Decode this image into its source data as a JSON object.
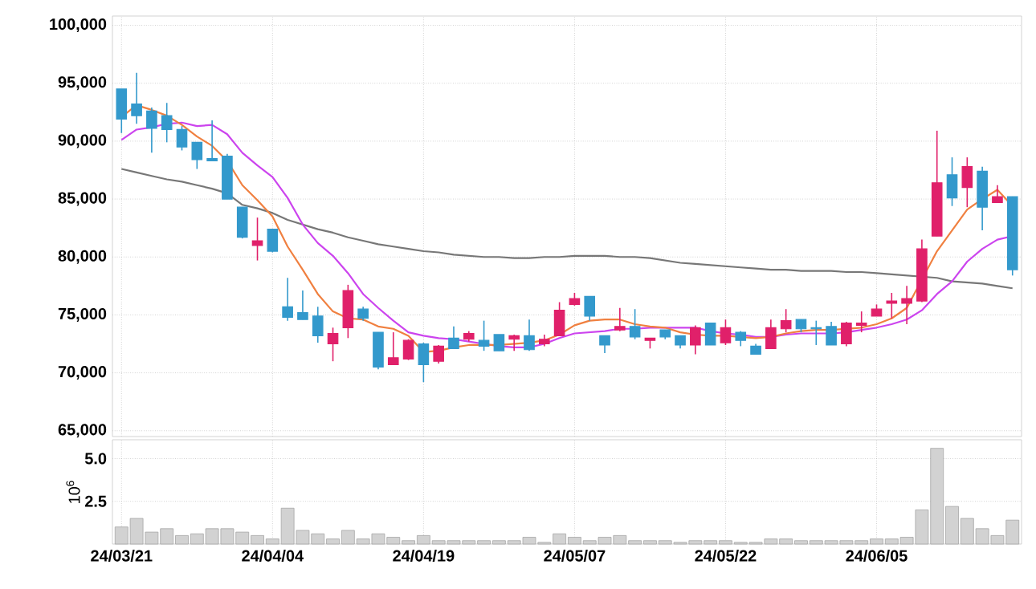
{
  "chart_data": [
    {
      "type": "candlestick",
      "categories": [
        null,
        null,
        null,
        null,
        null,
        null,
        null,
        null,
        null,
        null,
        null,
        null,
        null,
        null,
        null,
        null,
        null,
        null,
        null,
        null,
        null,
        null,
        null,
        null,
        null,
        null,
        null,
        null,
        null,
        null,
        null,
        null,
        null,
        null,
        null,
        null,
        null,
        null,
        null,
        null,
        null,
        null,
        null,
        null,
        null,
        null,
        null,
        null,
        null,
        null,
        null,
        null,
        null,
        null,
        null,
        null,
        null,
        null,
        null,
        null
      ],
      "ohlc": [
        [
          94500,
          94500,
          90700,
          91900
        ],
        [
          93200,
          95900,
          91500,
          92200
        ],
        [
          92600,
          92900,
          89000,
          91100
        ],
        [
          92200,
          93300,
          89900,
          91000
        ],
        [
          91000,
          91300,
          89200,
          89500
        ],
        [
          89900,
          89900,
          87600,
          88400
        ],
        [
          88500,
          91800,
          88300,
          88300
        ],
        [
          88700,
          88900,
          85000,
          85000
        ],
        [
          84300,
          84300,
          81600,
          81700
        ],
        [
          81000,
          83400,
          79700,
          81400
        ],
        [
          82400,
          82400,
          80400,
          80500
        ],
        [
          75700,
          78200,
          74500,
          74800
        ],
        [
          75200,
          77100,
          74600,
          74600
        ],
        [
          74900,
          75700,
          72600,
          73200
        ],
        [
          72500,
          73900,
          71000,
          73400
        ],
        [
          73900,
          77600,
          73000,
          77100
        ],
        [
          75500,
          75700,
          74500,
          74700
        ],
        [
          73500,
          73500,
          70300,
          70500
        ],
        [
          70700,
          73500,
          70700,
          71300
        ],
        [
          71200,
          72900,
          71100,
          72800
        ],
        [
          72500,
          72600,
          69200,
          70700
        ],
        [
          71000,
          72400,
          70800,
          72300
        ],
        [
          73000,
          74000,
          72100,
          72100
        ],
        [
          72900,
          73600,
          72700,
          73400
        ],
        [
          72800,
          74500,
          71900,
          72300
        ],
        [
          73300,
          73300,
          71900,
          71900
        ],
        [
          72900,
          73300,
          71900,
          73200
        ],
        [
          73200,
          74600,
          71900,
          72000
        ],
        [
          72500,
          73300,
          72300,
          72900
        ],
        [
          73200,
          76100,
          73200,
          75400
        ],
        [
          75900,
          76900,
          75800,
          76400
        ],
        [
          76600,
          76600,
          74500,
          74900
        ],
        [
          73200,
          73200,
          71700,
          72400
        ],
        [
          73700,
          75600,
          73600,
          74000
        ],
        [
          74000,
          75500,
          72900,
          73100
        ],
        [
          72800,
          73000,
          72100,
          73000
        ],
        [
          73700,
          73700,
          72900,
          73100
        ],
        [
          73200,
          73200,
          72100,
          72400
        ],
        [
          72400,
          74100,
          71600,
          73900
        ],
        [
          74300,
          74300,
          72400,
          72400
        ],
        [
          72600,
          74600,
          72400,
          73900
        ],
        [
          73500,
          73600,
          72300,
          72800
        ],
        [
          72300,
          72500,
          71600,
          71600
        ],
        [
          72100,
          74600,
          72100,
          73900
        ],
        [
          73800,
          75500,
          73500,
          74500
        ],
        [
          74600,
          74600,
          73500,
          73800
        ],
        [
          73900,
          74500,
          72400,
          73800
        ],
        [
          74000,
          74400,
          72400,
          72400
        ],
        [
          72500,
          74400,
          72300,
          74300
        ],
        [
          74100,
          75300,
          73500,
          74300
        ],
        [
          74900,
          75900,
          74900,
          75500
        ],
        [
          76000,
          76900,
          74700,
          76200
        ],
        [
          76000,
          77500,
          74200,
          76400
        ],
        [
          76200,
          81500,
          76100,
          80700
        ],
        [
          81800,
          90900,
          81800,
          86400
        ],
        [
          87100,
          88600,
          84400,
          85100
        ],
        [
          86000,
          88600,
          84300,
          87800
        ],
        [
          87400,
          87800,
          82300,
          84300
        ],
        [
          84700,
          86200,
          84700,
          85200
        ],
        [
          85200,
          85200,
          78400,
          78900
        ]
      ],
      "colors": [
        "#3399cc",
        "#3399cc",
        "#3399cc",
        "#3399cc",
        "#3399cc",
        "#3399cc",
        "#3399cc",
        "#3399cc",
        "#3399cc",
        "#e0206a",
        "#3399cc",
        "#3399cc",
        "#3399cc",
        "#3399cc",
        "#e0206a",
        "#e0206a",
        "#3399cc",
        "#3399cc",
        "#e0206a",
        "#e0206a",
        "#3399cc",
        "#e0206a",
        "#3399cc",
        "#e0206a",
        "#3399cc",
        "#3399cc",
        "#e0206a",
        "#3399cc",
        "#e0206a",
        "#e0206a",
        "#e0206a",
        "#3399cc",
        "#3399cc",
        "#e0206a",
        "#3399cc",
        "#e0206a",
        "#3399cc",
        "#3399cc",
        "#e0206a",
        "#3399cc",
        "#e0206a",
        "#3399cc",
        "#3399cc",
        "#e0206a",
        "#e0206a",
        "#3399cc",
        "#3399cc",
        "#3399cc",
        "#e0206a",
        "#e0206a",
        "#e0206a",
        "#e0206a",
        "#e0206a",
        "#e0206a",
        "#e0206a",
        "#3399cc",
        "#e0206a",
        "#3399cc",
        "#e0206a",
        "#3399cc"
      ],
      "series": [
        {
          "type": "line",
          "color": "#777777",
          "values": [
            87600,
            87300,
            87000,
            86700,
            86500,
            86200,
            85900,
            85500,
            84500,
            84200,
            83800,
            83200,
            82800,
            82400,
            82100,
            81700,
            81400,
            81100,
            80900,
            80700,
            80500,
            80400,
            80200,
            80100,
            80000,
            80000,
            79900,
            79900,
            80000,
            80000,
            80100,
            80100,
            80100,
            80000,
            80000,
            79900,
            79700,
            79500,
            79400,
            79300,
            79200,
            79100,
            79000,
            78900,
            78900,
            78800,
            78800,
            78800,
            78700,
            78700,
            78600,
            78500,
            78400,
            78300,
            78200,
            77900,
            77800,
            77700,
            77500,
            77300
          ]
        },
        {
          "type": "line",
          "color": "#cc44ee",
          "values": [
            90100,
            91000,
            91200,
            91500,
            91600,
            91300,
            91400,
            90600,
            89000,
            87900,
            86900,
            85100,
            82800,
            81200,
            80100,
            78600,
            76800,
            75600,
            74500,
            73500,
            73200,
            73000,
            72900,
            72700,
            72500,
            72300,
            72200,
            72200,
            72500,
            73000,
            73400,
            73500,
            73600,
            73800,
            73800,
            73900,
            73900,
            73900,
            73900,
            73600,
            73400,
            73300,
            73100,
            73100,
            73300,
            73400,
            73400,
            73400,
            73500,
            73700,
            73900,
            74200,
            74600,
            75400,
            76800,
            77900,
            79600,
            80700,
            81500,
            81800
          ]
        },
        {
          "type": "line",
          "color": "#f08040",
          "values": [
            92100,
            93100,
            92700,
            92200,
            91400,
            90400,
            89600,
            88300,
            86200,
            84900,
            83500,
            80900,
            78900,
            76800,
            75300,
            74700,
            74600,
            74000,
            73800,
            73200,
            71800,
            71900,
            72200,
            72400,
            72400,
            72400,
            72500,
            72600,
            72800,
            73300,
            74100,
            74500,
            74600,
            74600,
            74200,
            74000,
            73900,
            73500,
            73300,
            73200,
            73200,
            73100,
            73000,
            73100,
            73400,
            73600,
            73700,
            73700,
            73800,
            73900,
            74200,
            74700,
            75600,
            null,
            80500,
            82300,
            84100,
            85000,
            85800,
            84400
          ]
        }
      ],
      "ylim": [
        64500,
        100800
      ],
      "yticks": [
        {
          "value": 65000,
          "label": "65,000"
        },
        {
          "value": 70000,
          "label": "70,000"
        },
        {
          "value": 75000,
          "label": "75,000"
        },
        {
          "value": 80000,
          "label": "80,000"
        },
        {
          "value": 85000,
          "label": "85,000"
        },
        {
          "value": 90000,
          "label": "90,000"
        },
        {
          "value": 95000,
          "label": "95,000"
        },
        {
          "value": 100000,
          "label": "100,000"
        }
      ],
      "grid": true,
      "tick_labels": "y"
    },
    {
      "type": "bar",
      "categories": [
        "24/03/21",
        null,
        null,
        null,
        null,
        null,
        null,
        null,
        null,
        null,
        "24/04/04",
        null,
        null,
        null,
        null,
        null,
        null,
        null,
        null,
        null,
        "24/04/19",
        null,
        null,
        null,
        null,
        null,
        null,
        null,
        null,
        null,
        "24/05/07",
        null,
        null,
        null,
        null,
        null,
        null,
        null,
        null,
        null,
        "24/05/22",
        null,
        null,
        null,
        null,
        null,
        null,
        null,
        null,
        null,
        "24/06/05",
        null,
        null,
        null,
        null,
        null,
        null,
        null,
        null,
        null
      ],
      "values": [
        1.0,
        1.5,
        0.7,
        0.9,
        0.5,
        0.6,
        0.9,
        0.9,
        0.7,
        0.5,
        0.3,
        2.1,
        0.8,
        0.6,
        0.3,
        0.8,
        0.3,
        0.6,
        0.4,
        0.2,
        0.5,
        0.2,
        0.2,
        0.2,
        0.2,
        0.2,
        0.2,
        0.4,
        0.1,
        0.6,
        0.4,
        0.2,
        0.4,
        0.5,
        0.2,
        0.2,
        0.2,
        0.1,
        0.2,
        0.2,
        0.2,
        0.1,
        0.1,
        0.3,
        0.3,
        0.2,
        0.2,
        0.2,
        0.2,
        0.2,
        0.3,
        0.3,
        0.4,
        2.0,
        5.6,
        2.2,
        1.5,
        0.9,
        0.5,
        1.4
      ],
      "color": "#d2d2d2",
      "ylabel": "10$^{6}$",
      "ylim": [
        0,
        6.1
      ],
      "yticks": [
        2.5,
        {
          "value": 5,
          "label": "5.0"
        }
      ],
      "grid": true
    }
  ]
}
